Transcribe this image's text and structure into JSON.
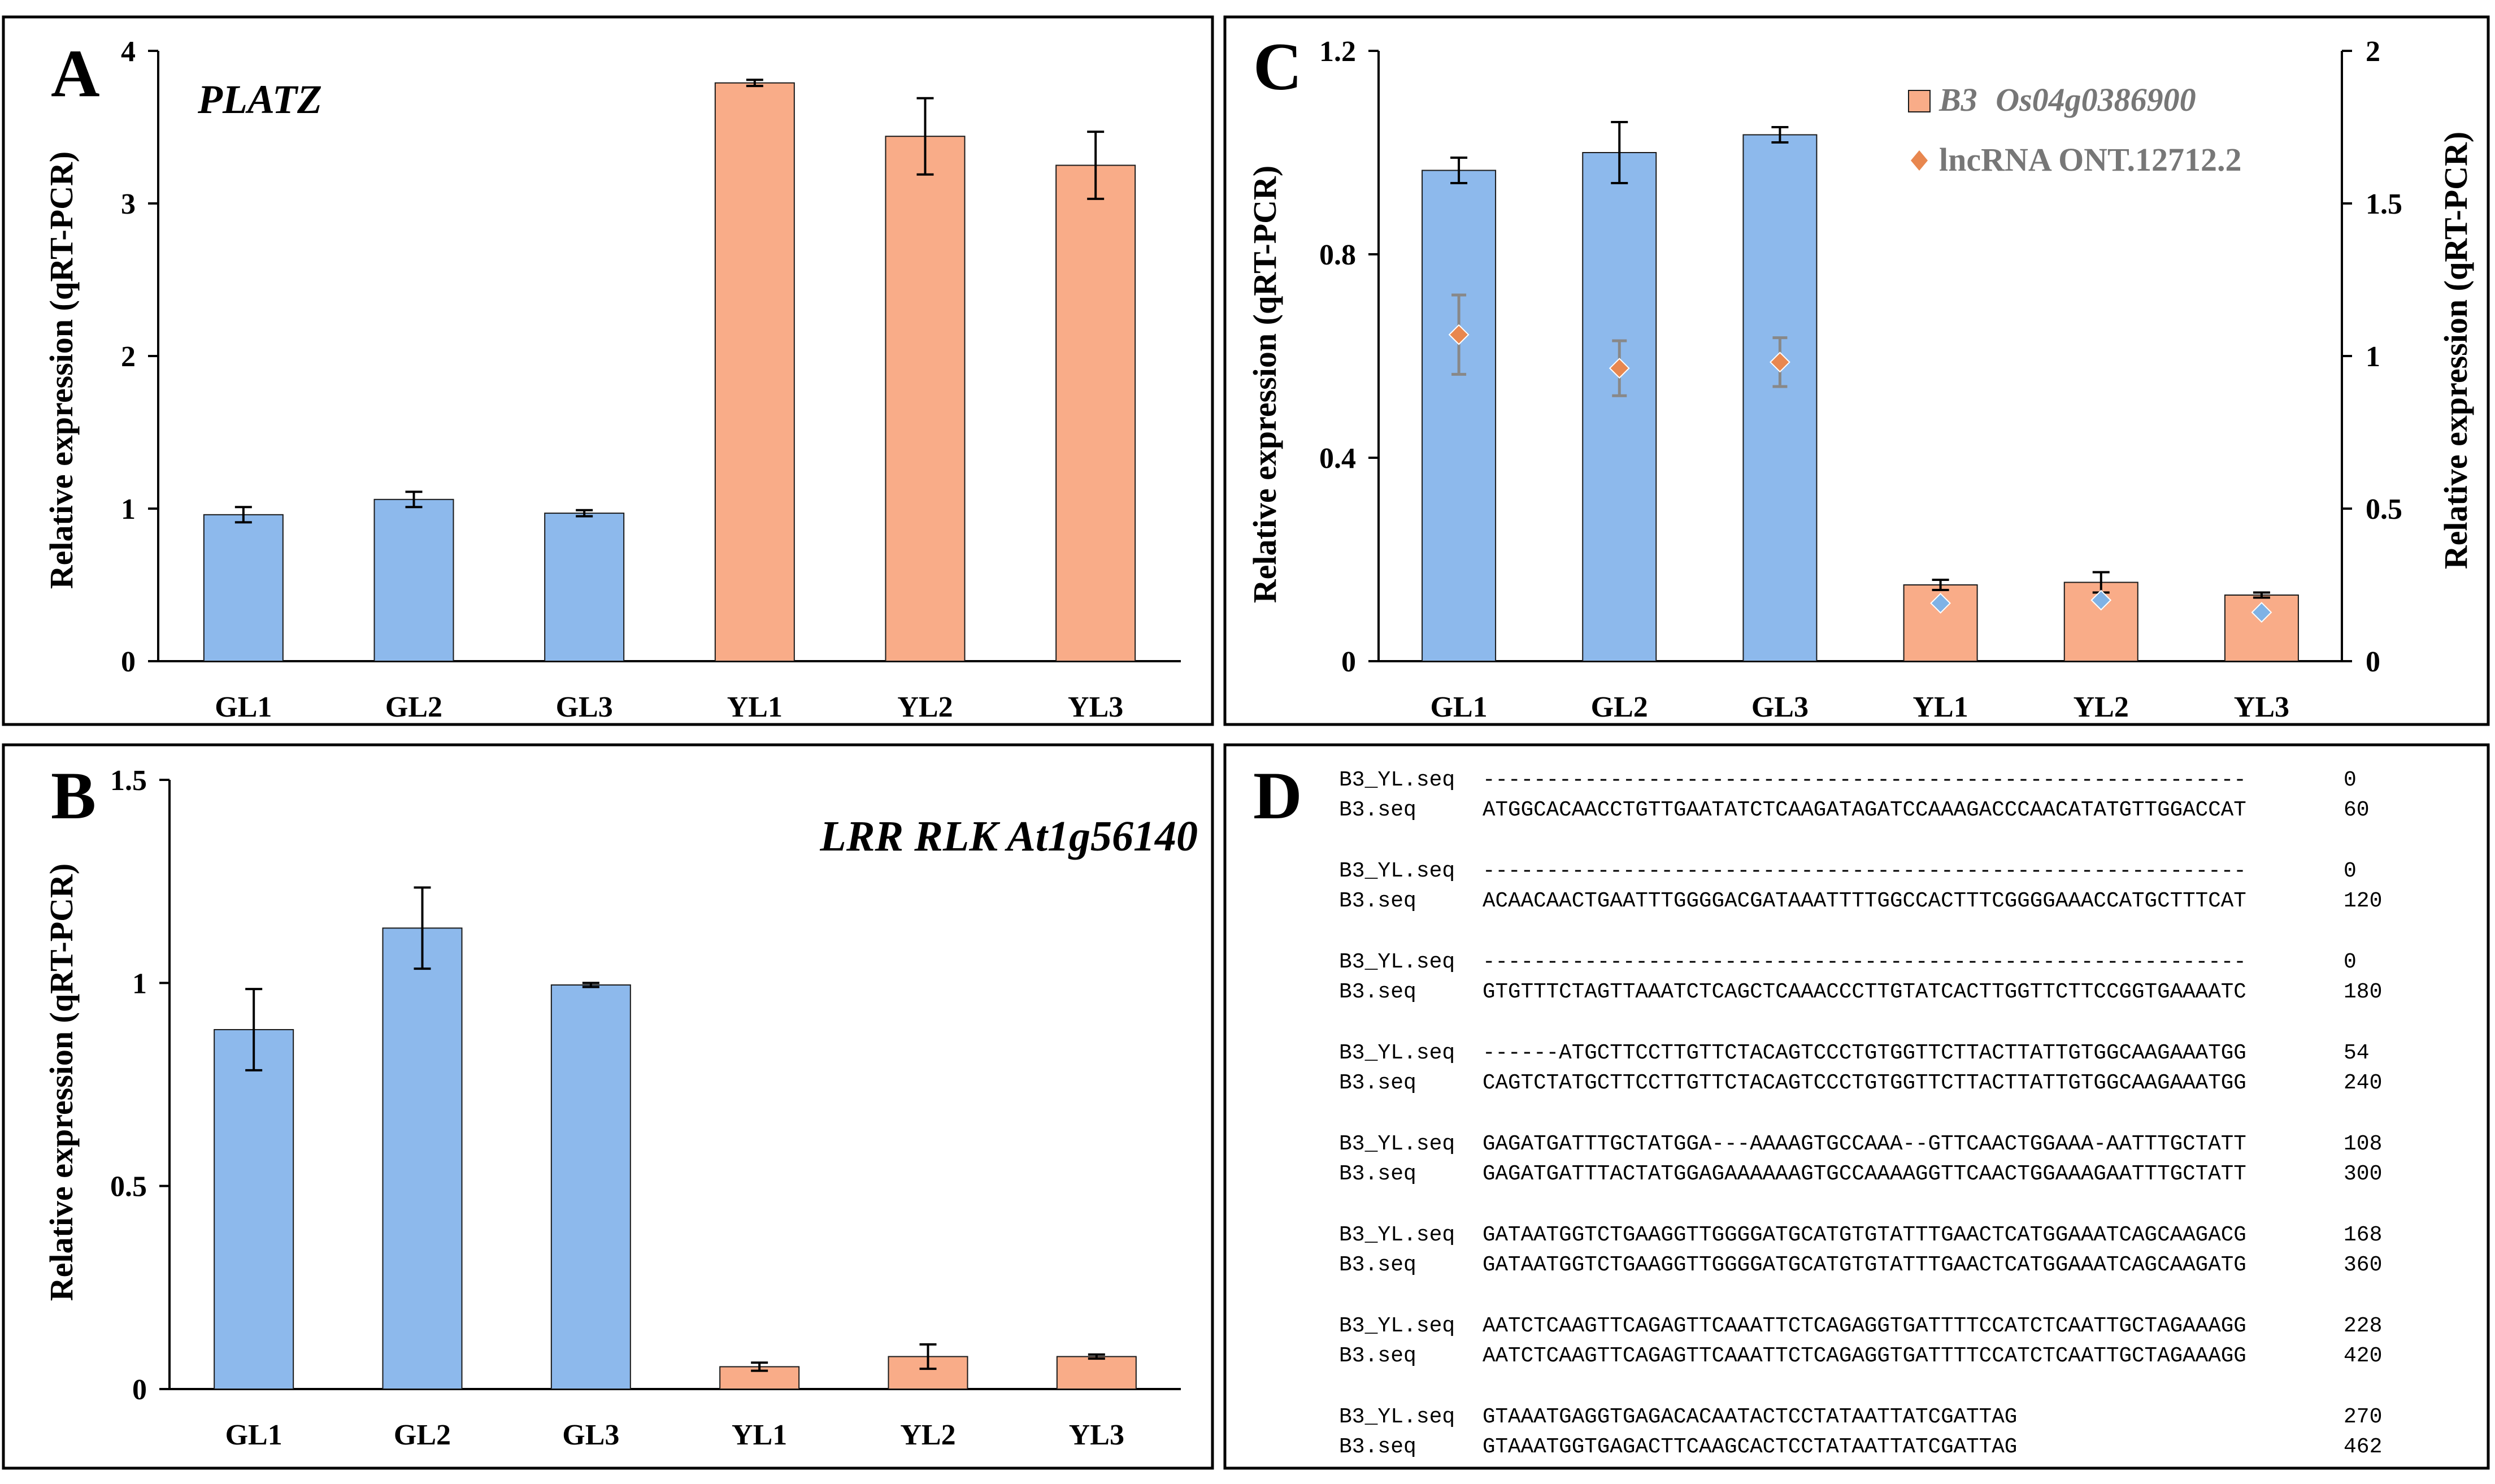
{
  "colors": {
    "green_bar": "#8DB9EC",
    "yellow_bar": "#F9AC88",
    "bar_stroke": "#1a1a1a",
    "frame": "#000000",
    "marker_orange": "#E8874F",
    "marker_blue": "#7FB2E5",
    "marker_errbar": "#888888"
  },
  "figure": {
    "panel_a": {
      "letter": "A",
      "gene_label": "PLATZ",
      "y_axis_label": "Relative expression (qRT-PCR)"
    },
    "panel_b": {
      "letter": "B",
      "gene_label": "LRR RLK At1g56140",
      "y_axis_label": "Relative expression (qRT-PCR)"
    },
    "panel_c": {
      "letter": "C",
      "legend_bar_gene": "B3",
      "legend_bar_id": "Os04g0386900",
      "legend_marker_label": "lncRNA ONT.12712.2",
      "y_axis_label_left": "Relative expression (qRT-PCR)",
      "y_axis_label_right": "Relative expression (qRT-PCR)"
    },
    "panel_d": {
      "letter": "D",
      "alignment": [
        {
          "name": "B3_YL.seq",
          "seq": "------------------------------------------------------------",
          "num": "0"
        },
        {
          "name": "B3.seq",
          "seq": "ATGGCACAACCTGTTGAATATCTCAAGATAGATCCAAAGACCCAACATATGTTGGACCAT",
          "num": "60"
        },
        {
          "name": "B3_YL.seq",
          "seq": "------------------------------------------------------------",
          "num": "0"
        },
        {
          "name": "B3.seq",
          "seq": "ACAACAACTGAATTTGGGGACGATAAATTTTGGCCACTTTCGGGGAAACCATGCTTTCAT",
          "num": "120"
        },
        {
          "name": "B3_YL.seq",
          "seq": "------------------------------------------------------------",
          "num": "0"
        },
        {
          "name": "B3.seq",
          "seq": "GTGTTTCTAGTTAAATCTCAGCTCAAACCCTTGTATCACTTGGTTCTTCCGGTGAAAATC",
          "num": "180"
        },
        {
          "name": "B3_YL.seq",
          "seq": "------ATGCTTCCTTGTTCTACAGTCCCTGTGGTTCTTACTTATTGTGGCAAGAAATGG",
          "num": "54"
        },
        {
          "name": "B3.seq",
          "seq": "CAGTCTATGCTTCCTTGTTCTACAGTCCCTGTGGTTCTTACTTATTGTGGCAAGAAATGG",
          "num": "240"
        },
        {
          "name": "B3_YL.seq",
          "seq": "GAGATGATTTGCTATGGA---AAAAGTGCCAAA--GTTCAACTGGAAA-AATTTGCTATT",
          "num": "108"
        },
        {
          "name": "B3.seq",
          "seq": "GAGATGATTTACTATGGAGAAAAAAGTGCCAAAAGGTTCAACTGGAAAGAATTTGCTATT",
          "num": "300"
        },
        {
          "name": "B3_YL.seq",
          "seq": "GATAATGGTCTGAAGGTTGGGGATGCATGTGTATTTGAACTCATGGAAATCAGCAAGACG",
          "num": "168"
        },
        {
          "name": "B3.seq",
          "seq": "GATAATGGTCTGAAGGTTGGGGATGCATGTGTATTTGAACTCATGGAAATCAGCAAGATG",
          "num": "360"
        },
        {
          "name": "B3_YL.seq",
          "seq": "AATCTCAAGTTCAGAGTTCAAATTCTCAGAGGTGATTTTCCATCTCAATTGCTAGAAAGG",
          "num": "228"
        },
        {
          "name": "B3.seq",
          "seq": "AATCTCAAGTTCAGAGTTCAAATTCTCAGAGGTGATTTTCCATCTCAATTGCTAGAAAGG",
          "num": "420"
        },
        {
          "name": "B3_YL.seq",
          "seq": "GTAAATGAGGTGAGACACAATACTCCTATAATTATCGATTAG",
          "num": "270"
        },
        {
          "name": "B3.seq",
          "seq": "GTAAATGGTGAGACTTCAAGCACTCCTATAATTATCGATTAG",
          "num": "462"
        }
      ]
    }
  },
  "chart_data": [
    {
      "id": "A",
      "type": "bar",
      "title": "PLATZ",
      "categories": [
        "GL1",
        "GL2",
        "GL3",
        "YL1",
        "YL2",
        "YL3"
      ],
      "values": [
        0.96,
        1.06,
        0.97,
        3.79,
        3.44,
        3.25
      ],
      "errors": [
        0.05,
        0.05,
        0.02,
        0.02,
        0.25,
        0.22
      ],
      "groups": [
        "green",
        "green",
        "green",
        "yellow",
        "yellow",
        "yellow"
      ],
      "ylabel": "Relative expression (qRT-PCR)",
      "ylim": [
        0,
        4
      ],
      "yticks": [
        0,
        1,
        2,
        3,
        4
      ],
      "ytick_labels": [
        "0",
        "1",
        "2",
        "3",
        "4"
      ]
    },
    {
      "id": "B",
      "type": "bar",
      "title": "LRR RLK At1g56140",
      "categories": [
        "GL1",
        "GL2",
        "GL3",
        "YL1",
        "YL2",
        "YL3"
      ],
      "values": [
        0.885,
        1.135,
        0.995,
        0.055,
        0.08,
        0.08
      ],
      "errors": [
        0.1,
        0.1,
        0.005,
        0.01,
        0.03,
        0.005
      ],
      "groups": [
        "green",
        "green",
        "green",
        "yellow",
        "yellow",
        "yellow"
      ],
      "ylabel": "Relative expression (qRT-PCR)",
      "ylim": [
        0,
        1.5
      ],
      "yticks": [
        0,
        0.5,
        1,
        1.5
      ],
      "ytick_labels": [
        "0",
        "0.5",
        "1",
        "1.5"
      ]
    },
    {
      "id": "C",
      "type": "bar",
      "title": "",
      "categories": [
        "GL1",
        "GL2",
        "GL3",
        "YL1",
        "YL2",
        "YL3"
      ],
      "series": [
        {
          "name": "B3 Os04g0386900",
          "kind": "bar",
          "axis": "left",
          "values": [
            0.965,
            1.0,
            1.035,
            0.15,
            0.155,
            0.13
          ],
          "errors": [
            0.025,
            0.06,
            0.015,
            0.01,
            0.02,
            0.005
          ],
          "groups": [
            "green",
            "green",
            "green",
            "yellow",
            "yellow",
            "yellow"
          ]
        },
        {
          "name": "lncRNA ONT.12712.2",
          "kind": "marker",
          "axis": "right",
          "values": [
            1.07,
            0.96,
            0.98,
            0.19,
            0.2,
            0.16
          ],
          "errors": [
            0.13,
            0.09,
            0.08,
            0,
            0,
            0
          ],
          "marker_groups": [
            "orange",
            "orange",
            "orange",
            "blue",
            "blue",
            "blue"
          ]
        }
      ],
      "ylabel": "Relative expression (qRT-PCR)",
      "ylim": [
        0,
        1.2
      ],
      "yticks": [
        0,
        0.4,
        0.8,
        1.2
      ],
      "ytick_labels": [
        "0",
        "0.4",
        "0.8",
        "1.2"
      ],
      "y2label": "Relative expression (qRT-PCR)",
      "y2lim": [
        0,
        2
      ],
      "y2ticks": [
        0,
        0.5,
        1,
        1.5,
        2
      ],
      "y2tick_labels": [
        "0",
        "0.5",
        "1",
        "1.5",
        "2"
      ],
      "legend": "top-right"
    }
  ]
}
